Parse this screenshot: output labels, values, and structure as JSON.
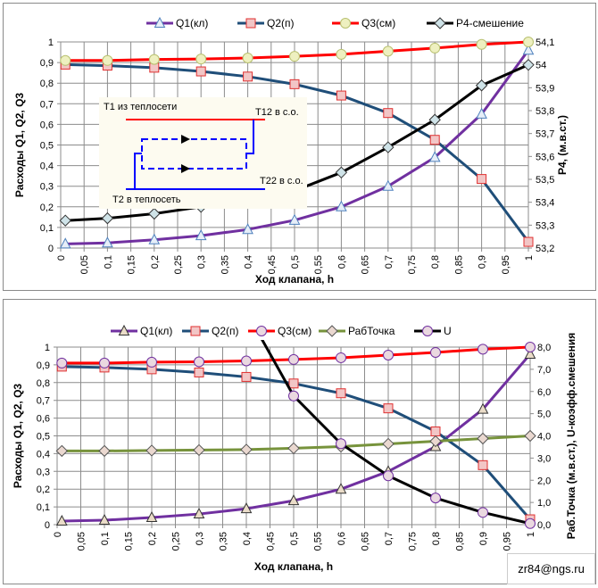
{
  "chart_data": [
    {
      "type": "line",
      "xlabel": "Ход клапана,  h",
      "ylabel": "Расходы  Q1, Q2, Q3",
      "y2label": "P4, (м.в.ст.)",
      "xlim": [
        0,
        1
      ],
      "ylim": [
        0,
        1
      ],
      "y2lim": [
        53.2,
        54.1
      ],
      "x_ticks": [
        "0",
        "0,05",
        "0,1",
        "0,15",
        "0,2",
        "0,25",
        "0,3",
        "0,35",
        "0,4",
        "0,45",
        "0,5",
        "0,55",
        "0,6",
        "0,65",
        "0,7",
        "0,75",
        "0,8",
        "0,85",
        "0,9",
        "0,95",
        "1"
      ],
      "y_ticks": [
        "0",
        "0,1",
        "0,2",
        "0,3",
        "0,4",
        "0,5",
        "0,6",
        "0,7",
        "0,8",
        "0,9",
        "1"
      ],
      "y2_ticks": [
        "53,2",
        "53,3",
        "53,4",
        "53,5",
        "53,6",
        "53,7",
        "53,8",
        "53,9",
        "54",
        "54,1"
      ],
      "grid": true,
      "legend": "top",
      "x": [
        0.01,
        0.1,
        0.2,
        0.3,
        0.4,
        0.5,
        0.6,
        0.7,
        0.8,
        0.9,
        1.0
      ],
      "series": [
        {
          "name": "Q1(кл)",
          "axis": "left",
          "color": "#7030a0",
          "marker": "triangle",
          "marker_fill": "#e6eef8",
          "marker_stroke": "#4f81bd",
          "values": [
            0.02,
            0.025,
            0.04,
            0.06,
            0.09,
            0.135,
            0.2,
            0.3,
            0.44,
            0.65,
            0.96
          ]
        },
        {
          "name": "Q2(п)",
          "axis": "left",
          "color": "#1f4e79",
          "marker": "square",
          "marker_fill": "#f2c6c6",
          "marker_stroke": "#e03030",
          "values": [
            0.89,
            0.885,
            0.875,
            0.857,
            0.832,
            0.795,
            0.74,
            0.655,
            0.525,
            0.335,
            0.03
          ]
        },
        {
          "name": "Q3(см)",
          "axis": "left",
          "color": "#ff0000",
          "marker": "circle",
          "marker_fill": "#eef0c0",
          "marker_stroke": "#b8c070",
          "values": [
            0.91,
            0.91,
            0.915,
            0.917,
            0.922,
            0.93,
            0.94,
            0.955,
            0.97,
            0.988,
            1.0
          ]
        },
        {
          "name": "P4-смешение",
          "axis": "right",
          "color": "#000000",
          "marker": "diamond",
          "marker_fill": "#cfe3e8",
          "marker_stroke": "#333333",
          "values": [
            53.32,
            53.33,
            53.35,
            53.38,
            53.41,
            53.45,
            53.53,
            53.64,
            53.76,
            53.91,
            54.0
          ]
        }
      ],
      "inset": {
        "t1": "T1 из теплосети",
        "t12": "T12 в с.о.",
        "t22": "T22 в с.о.",
        "t2": "T2 в теплосеть"
      }
    },
    {
      "type": "line",
      "xlabel": "Ход клапана,  h",
      "ylabel": "Расходы  Q1, Q2, Q3",
      "y2label": "Раб.Точка  (м.в.ст.), U-коэфф.смешения",
      "xlim": [
        0,
        1
      ],
      "ylim": [
        0,
        1
      ],
      "y2lim": [
        0,
        8
      ],
      "x_ticks": [
        "0",
        "0,05",
        "0,1",
        "0,15",
        "0,2",
        "0,25",
        "0,3",
        "0,35",
        "0,4",
        "0,45",
        "0,5",
        "0,55",
        "0,6",
        "0,65",
        "0,7",
        "0,75",
        "0,8",
        "0,85",
        "0,9",
        "0,95",
        "1"
      ],
      "y_ticks": [
        "0",
        "0,1",
        "0,2",
        "0,3",
        "0,4",
        "0,5",
        "0,6",
        "0,7",
        "0,8",
        "0,9",
        "1"
      ],
      "y2_ticks": [
        "0,0",
        "1,0",
        "2,0",
        "3,0",
        "4,0",
        "5,0",
        "6,0",
        "7,0",
        "8,0"
      ],
      "grid": true,
      "legend": "top",
      "x": [
        0.01,
        0.1,
        0.2,
        0.3,
        0.4,
        0.5,
        0.6,
        0.7,
        0.8,
        0.9,
        1.0
      ],
      "series": [
        {
          "name": "Q1(кл)",
          "axis": "left",
          "color": "#7030a0",
          "marker": "triangle",
          "marker_fill": "#eadcc8",
          "marker_stroke": "#333333",
          "values": [
            0.02,
            0.025,
            0.04,
            0.06,
            0.09,
            0.135,
            0.2,
            0.3,
            0.44,
            0.65,
            0.96
          ]
        },
        {
          "name": "Q2(п)",
          "axis": "left",
          "color": "#1f4e79",
          "marker": "square",
          "marker_fill": "#f2c6c6",
          "marker_stroke": "#e03030",
          "values": [
            0.89,
            0.885,
            0.875,
            0.857,
            0.832,
            0.795,
            0.74,
            0.655,
            0.525,
            0.335,
            0.03
          ]
        },
        {
          "name": "Q3(см)",
          "axis": "left",
          "color": "#ff0000",
          "marker": "circle",
          "marker_fill": "#ead8e0",
          "marker_stroke": "#7030a0",
          "values": [
            0.91,
            0.91,
            0.915,
            0.917,
            0.922,
            0.93,
            0.94,
            0.955,
            0.97,
            0.988,
            1.0
          ]
        },
        {
          "name": "РабТочка",
          "axis": "right",
          "color": "#77933c",
          "marker": "diamond",
          "marker_fill": "#ead8d0",
          "marker_stroke": "#555555",
          "values": [
            3.32,
            3.32,
            3.34,
            3.36,
            3.38,
            3.44,
            3.52,
            3.64,
            3.76,
            3.88,
            4.0
          ]
        },
        {
          "name": "U",
          "axis": "right",
          "color": "#000000",
          "marker": "circle",
          "marker_fill": "#ead8e0",
          "marker_stroke": "#7030a0",
          "values": [
            null,
            null,
            null,
            null,
            9.6,
            5.8,
            3.65,
            2.2,
            1.2,
            0.55,
            0.05
          ],
          "marker_from": 5
        }
      ]
    }
  ],
  "footer": {
    "email": "zr84@ngs.ru"
  }
}
